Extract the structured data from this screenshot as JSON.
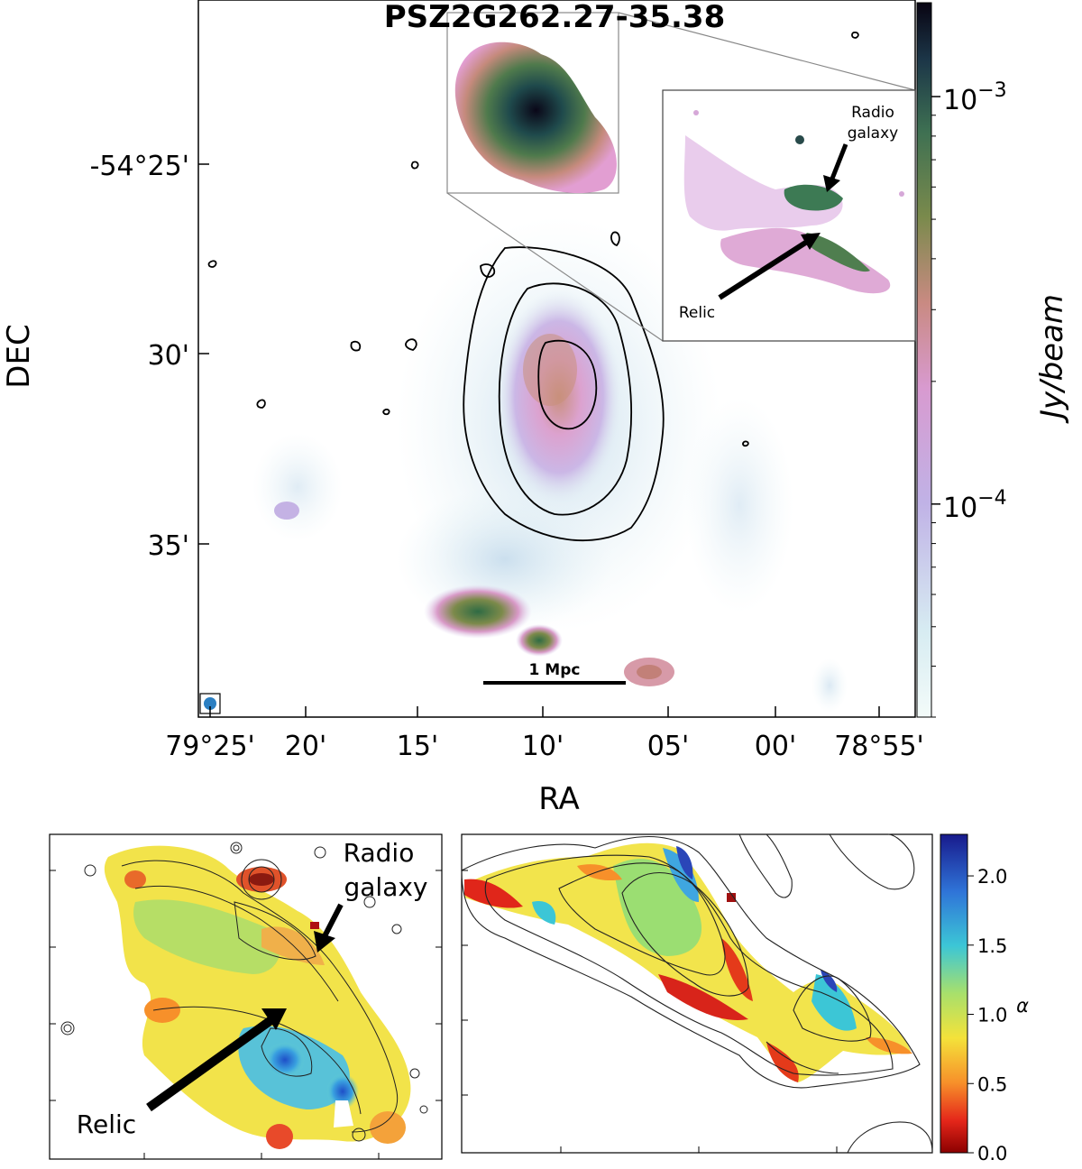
{
  "chart_data": [
    {
      "type": "heatmap",
      "title": "PSZ2G262.27-35.38",
      "xlabel": "RA",
      "ylabel": "DEC",
      "x_ticks": [
        "79°25'",
        "20'",
        "15'",
        "10'",
        "05'",
        "00'",
        "78°55'"
      ],
      "y_ticks": [
        "-54°25'",
        "30'",
        "35'"
      ],
      "colorbar": {
        "label": "Jy/beam",
        "scale": "log",
        "ticks": [
          {
            "base": "10",
            "exp": "−3",
            "value": 0.001
          },
          {
            "base": "10",
            "exp": "−4",
            "value": 0.0001
          }
        ],
        "range": [
          3e-05,
          0.0017
        ]
      },
      "scalebar": "1 Mpc",
      "inset_annotations": [
        "Radio",
        "galaxy",
        "Relic"
      ]
    },
    {
      "type": "heatmap",
      "title": "",
      "annotations": [
        "Radio",
        "galaxy",
        "Relic"
      ],
      "quantity": "spectral index"
    },
    {
      "type": "heatmap",
      "colorbar": {
        "label": "α",
        "ticks": [
          "0.0",
          "0.5",
          "1.0",
          "1.5",
          "2.0"
        ],
        "range": [
          0.0,
          2.3
        ]
      }
    }
  ]
}
